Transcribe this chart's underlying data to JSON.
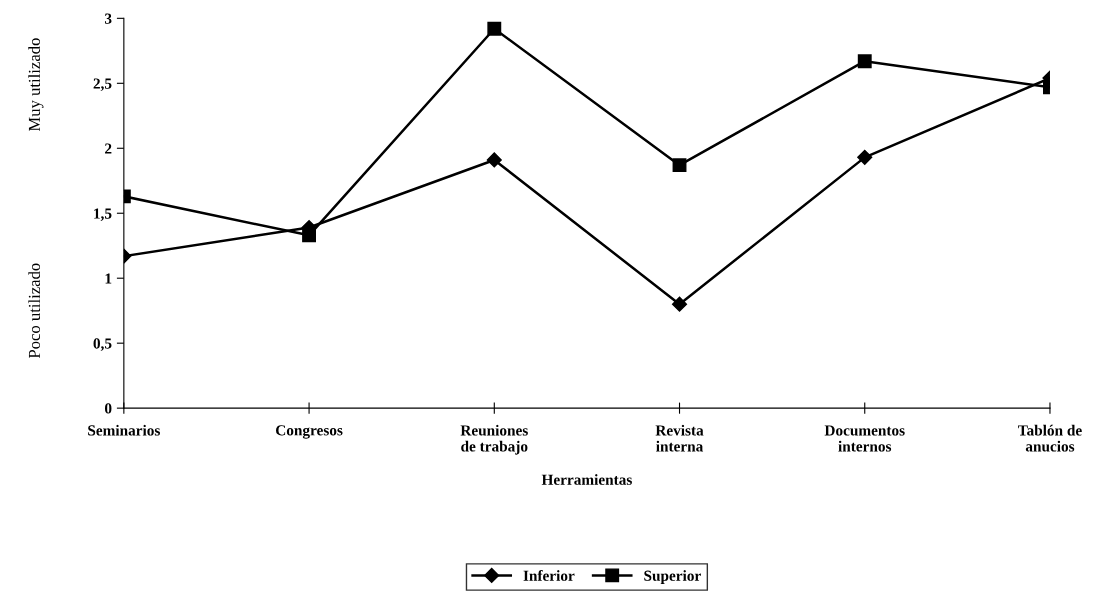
{
  "chart_data": {
    "type": "line",
    "xlabel": "Herramientas",
    "categories": [
      "Seminarios",
      "Congresos",
      "Reuniones\nde trabajo",
      "Revista\ninterna",
      "Documentos\ninternos",
      "Tablón de\nanucios"
    ],
    "series": [
      {
        "name": "Inferior",
        "color": "#000000",
        "marker": "diamond",
        "values": [
          1.17,
          1.39,
          1.91,
          0.8,
          1.93,
          2.54
        ]
      },
      {
        "name": "Superior",
        "color": "#000000",
        "marker": "square",
        "values": [
          1.63,
          1.33,
          2.92,
          1.87,
          2.67,
          2.47
        ]
      }
    ],
    "ylim": [
      0,
      3
    ],
    "yticks": [
      0,
      {
        "value": 0.5,
        "label": "0,5"
      },
      1,
      {
        "value": 1.5,
        "label": "1,5"
      },
      2,
      {
        "value": 2.5,
        "label": "2,5"
      },
      3
    ],
    "annotations": [
      "Muy utilizado",
      "Poco utilizado"
    ],
    "grid": false,
    "legend": "bottom",
    "line_style": "solid"
  }
}
